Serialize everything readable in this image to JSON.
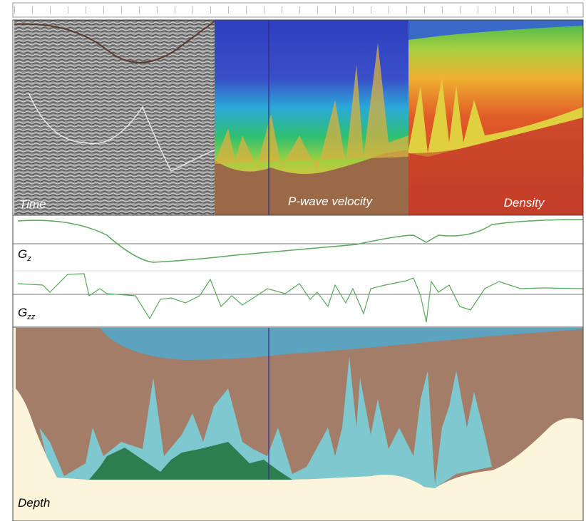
{
  "panels": {
    "time": "Time",
    "velocity": "P-wave velocity",
    "density": "Density",
    "gz": {
      "base": "G",
      "sub": "z"
    },
    "gzz": {
      "base": "G",
      "sub": "zz"
    },
    "depth": "Depth"
  }
}
